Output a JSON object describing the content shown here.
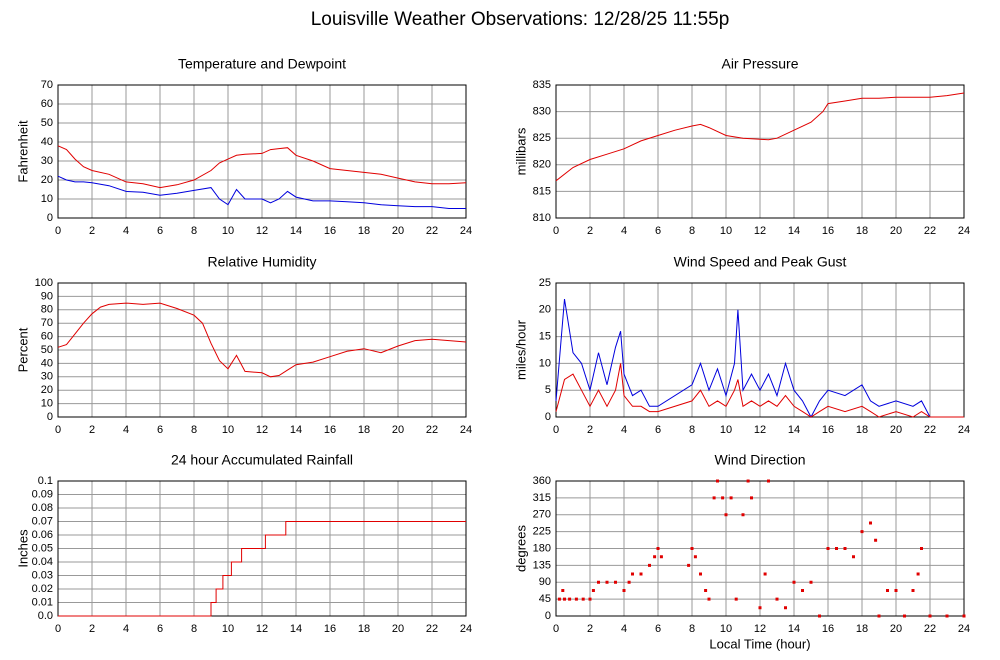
{
  "title": "Louisville Weather Observations: 12/28/25 11:55p",
  "chart_data": [
    {
      "type": "line",
      "title": "Temperature and Dewpoint",
      "ylabel": "Fahrenheit",
      "x": [
        0,
        0.5,
        1,
        1.5,
        2,
        3,
        4,
        5,
        6,
        7,
        8,
        9,
        9.5,
        10,
        10.5,
        11,
        12,
        12.5,
        13,
        13.5,
        14,
        15,
        16,
        17,
        18,
        19,
        20,
        21,
        22,
        23,
        24
      ],
      "series": [
        {
          "color": "#e00000",
          "values": [
            38,
            36,
            31,
            27,
            25,
            23,
            19,
            18,
            16,
            17.5,
            20,
            25,
            29,
            31,
            33,
            33.5,
            34,
            36,
            36.5,
            37,
            33,
            30,
            26,
            25,
            24,
            23,
            21,
            19,
            18,
            18,
            18.5
          ]
        },
        {
          "color": "#0000dd",
          "values": [
            22,
            20,
            19,
            19,
            18.5,
            17,
            14,
            13.5,
            12,
            13,
            14.5,
            16,
            10,
            7,
            15,
            10,
            10,
            8,
            10,
            14,
            11,
            9,
            9,
            8.5,
            8,
            7,
            6.5,
            6,
            6,
            5,
            5
          ]
        }
      ],
      "xlim": [
        0,
        24
      ],
      "xticks": [
        0,
        2,
        4,
        6,
        8,
        10,
        12,
        14,
        16,
        18,
        20,
        22,
        24
      ],
      "ylim": [
        0,
        70
      ],
      "yticks": [
        0,
        10,
        20,
        30,
        40,
        50,
        60,
        70
      ],
      "grid": true
    },
    {
      "type": "line",
      "title": "Air Pressure",
      "ylabel": "millibars",
      "x": [
        0,
        1,
        2,
        3,
        4,
        5,
        6,
        7,
        8,
        8.5,
        9,
        10,
        11,
        12,
        12.5,
        13,
        14,
        15,
        15.7,
        16,
        17,
        18,
        19,
        20,
        21,
        22,
        23,
        24
      ],
      "series": [
        {
          "color": "#e00000",
          "values": [
            817,
            819.5,
            821,
            822,
            823,
            824.5,
            825.5,
            826.5,
            827.3,
            827.6,
            827,
            825.5,
            825,
            824.8,
            824.7,
            825,
            826.5,
            828,
            830,
            831.5,
            832,
            832.5,
            832.5,
            832.7,
            832.7,
            832.7,
            833,
            833.5
          ]
        }
      ],
      "xlim": [
        0,
        24
      ],
      "xticks": [
        0,
        2,
        4,
        6,
        8,
        10,
        12,
        14,
        16,
        18,
        20,
        22,
        24
      ],
      "ylim": [
        810,
        835
      ],
      "yticks": [
        810,
        815,
        820,
        825,
        830,
        835
      ],
      "grid": true
    },
    {
      "type": "line",
      "title": "Relative Humidity",
      "ylabel": "Percent",
      "x": [
        0,
        0.5,
        1,
        1.5,
        2,
        2.5,
        3,
        4,
        5,
        6,
        7,
        8,
        8.5,
        9,
        9.5,
        10,
        10.5,
        11,
        12,
        12.5,
        13,
        13.5,
        14,
        15,
        16,
        17,
        18,
        19,
        20,
        21,
        22,
        23,
        24
      ],
      "series": [
        {
          "color": "#e00000",
          "values": [
            52,
            54,
            62,
            70,
            77,
            82,
            84,
            85,
            84,
            85,
            81,
            76,
            70,
            55,
            42,
            36,
            46,
            34,
            33,
            30,
            31,
            35,
            39,
            41,
            45,
            49,
            51,
            48,
            53,
            57,
            58,
            57,
            56
          ]
        }
      ],
      "xlim": [
        0,
        24
      ],
      "xticks": [
        0,
        2,
        4,
        6,
        8,
        10,
        12,
        14,
        16,
        18,
        20,
        22,
        24
      ],
      "ylim": [
        0,
        100
      ],
      "yticks": [
        0,
        10,
        20,
        30,
        40,
        50,
        60,
        70,
        80,
        90,
        100
      ],
      "grid": true
    },
    {
      "type": "line",
      "title": "Wind Speed and Peak Gust",
      "ylabel": "miles/hour",
      "x": [
        0,
        0.5,
        1,
        1.5,
        2,
        2.5,
        3,
        3.5,
        3.8,
        4,
        4.5,
        5,
        5.5,
        6,
        8,
        8.5,
        9,
        9.5,
        10,
        10.5,
        10.7,
        11,
        11.5,
        12,
        12.5,
        13,
        13.5,
        14,
        14.5,
        15,
        15.5,
        16,
        17,
        18,
        18.5,
        19,
        20,
        21,
        21.5,
        22,
        24
      ],
      "series": [
        {
          "color": "#0000dd",
          "values": [
            3,
            22,
            12,
            10,
            5,
            12,
            6,
            13,
            16,
            8,
            4,
            5,
            2,
            2,
            6,
            10,
            5,
            9,
            4,
            10,
            20,
            5,
            8,
            5,
            8,
            4,
            10,
            5,
            3,
            0,
            3,
            5,
            4,
            6,
            3,
            2,
            3,
            2,
            3,
            0,
            0
          ]
        },
        {
          "color": "#e00000",
          "values": [
            1,
            7,
            8,
            5,
            2,
            5,
            2,
            5,
            10,
            4,
            2,
            2,
            1,
            1,
            3,
            5,
            2,
            3,
            2,
            5,
            7,
            2,
            3,
            2,
            3,
            2,
            4,
            2,
            1,
            0,
            1,
            2,
            1,
            2,
            1,
            0,
            1,
            0,
            1,
            0,
            0
          ]
        }
      ],
      "xlim": [
        0,
        24
      ],
      "xticks": [
        0,
        2,
        4,
        6,
        8,
        10,
        12,
        14,
        16,
        18,
        20,
        22,
        24
      ],
      "ylim": [
        0,
        25
      ],
      "yticks": [
        0,
        5,
        10,
        15,
        20,
        25
      ],
      "grid": true
    },
    {
      "type": "line",
      "title": "24 hour Accumulated Rainfall",
      "ylabel": "Inches",
      "x": [
        0,
        9.0,
        9.0,
        9.3,
        9.3,
        9.7,
        9.7,
        10.2,
        10.2,
        10.8,
        10.8,
        12.2,
        12.2,
        13.4,
        13.4,
        24
      ],
      "series": [
        {
          "color": "#e00000",
          "values": [
            0,
            0,
            0.01,
            0.01,
            0.02,
            0.02,
            0.03,
            0.03,
            0.04,
            0.04,
            0.05,
            0.05,
            0.06,
            0.06,
            0.07,
            0.07
          ]
        }
      ],
      "xlim": [
        0,
        24
      ],
      "xticks": [
        0,
        2,
        4,
        6,
        8,
        10,
        12,
        14,
        16,
        18,
        20,
        22,
        24
      ],
      "ylim": [
        0,
        0.1
      ],
      "yticks": [
        {
          "value": 0,
          "label": "0.0"
        },
        0.01,
        0.02,
        0.03,
        0.04,
        0.05,
        0.06,
        0.07,
        0.08,
        0.09,
        0.1
      ],
      "grid": true
    },
    {
      "type": "scatter",
      "title": "Wind Direction",
      "ylabel": "degrees",
      "xlabel": "Local Time (hour)",
      "x": [
        0.2,
        0.4,
        0.5,
        0.8,
        1.2,
        1.6,
        2,
        2.2,
        2.5,
        3,
        3.5,
        4,
        4.3,
        4.5,
        5,
        5.5,
        5.8,
        6,
        6.2,
        7.8,
        8,
        8.2,
        8.5,
        8.8,
        9,
        9.3,
        9.5,
        9.8,
        10,
        10.3,
        10.6,
        11,
        11.3,
        11.5,
        12,
        12.3,
        12.5,
        13,
        13.5,
        14,
        14.5,
        15,
        15.5,
        16,
        16.5,
        17,
        17.5,
        18,
        18.5,
        18.8,
        19,
        19.5,
        20,
        20.5,
        21,
        21.3,
        21.5,
        22,
        23,
        24
      ],
      "series": [
        {
          "color": "#e00000",
          "values": [
            45,
            68,
            45,
            45,
            45,
            45,
            45,
            68,
            90,
            90,
            90,
            68,
            90,
            112,
            112,
            135,
            158,
            180,
            158,
            135,
            180,
            158,
            112,
            68,
            45,
            315,
            360,
            315,
            270,
            315,
            45,
            270,
            360,
            315,
            22,
            112,
            360,
            45,
            22,
            90,
            68,
            90,
            0,
            180,
            180,
            180,
            158,
            225,
            248,
            202,
            0,
            68,
            68,
            0,
            68,
            112,
            180,
            0,
            0,
            0
          ]
        }
      ],
      "xlim": [
        0,
        24
      ],
      "xticks": [
        0,
        2,
        4,
        6,
        8,
        10,
        12,
        14,
        16,
        18,
        20,
        22,
        24
      ],
      "ylim": [
        0,
        360
      ],
      "yticks": [
        0,
        45,
        90,
        135,
        180,
        225,
        270,
        315,
        360
      ],
      "grid": true
    }
  ]
}
